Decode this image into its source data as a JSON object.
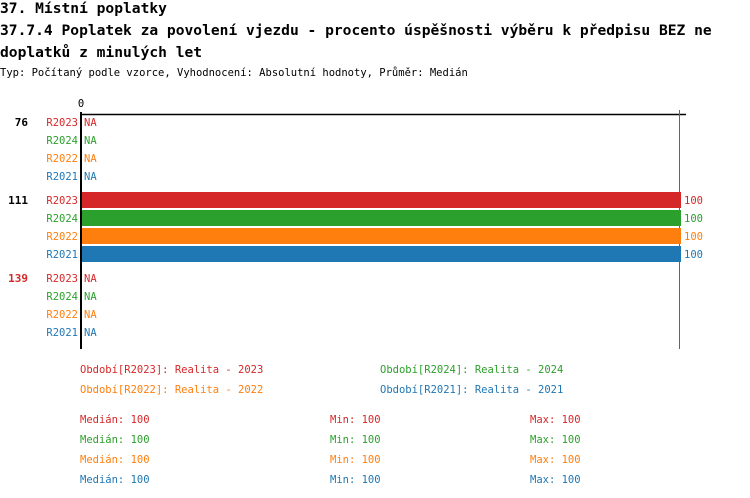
{
  "header": {
    "title": "37. Místní poplatky",
    "subtitle_line1": "37.7.4 Poplatek za povolení vjezdu - procento úspěšnosti výběru k předpisu BEZ ne",
    "subtitle_line2": "doplatků z minulých let",
    "info": "Typ: Počítaný podle vzorce, Vyhodnocení: Absolutní hodnoty, Průměr: Medián"
  },
  "colors": {
    "R2023": "#d62728",
    "R2024": "#2ca02c",
    "R2022": "#ff7f0e",
    "R2021": "#1f77b4"
  },
  "chart_data": {
    "type": "bar",
    "orientation": "horizontal",
    "x_tick_labels": [
      "0"
    ],
    "xlim": [
      0,
      100
    ],
    "categories": [
      "76",
      "111",
      "139"
    ],
    "category_colors": [
      "#000000",
      "#000000",
      "#d62728"
    ],
    "series": [
      {
        "name": "R2023",
        "values": [
          null,
          100,
          null
        ]
      },
      {
        "name": "R2024",
        "values": [
          null,
          100,
          null
        ]
      },
      {
        "name": "R2022",
        "values": [
          null,
          100,
          null
        ]
      },
      {
        "name": "R2021",
        "values": [
          null,
          100,
          null
        ]
      }
    ],
    "missing_label": "NA"
  },
  "legend": [
    {
      "text": "Období[R2023]: Realita - 2023",
      "series": "R2023"
    },
    {
      "text": "Období[R2024]: Realita - 2024",
      "series": "R2024"
    },
    {
      "text": "Období[R2022]: Realita - 2022",
      "series": "R2022"
    },
    {
      "text": "Období[R2021]: Realita - 2021",
      "series": "R2021"
    }
  ],
  "stats": [
    {
      "series": "R2023",
      "median": "Medián: 100",
      "min": "Min: 100",
      "max": "Max: 100"
    },
    {
      "series": "R2024",
      "median": "Medián: 100",
      "min": "Min: 100",
      "max": "Max: 100"
    },
    {
      "series": "R2022",
      "median": "Medián: 100",
      "min": "Min: 100",
      "max": "Max: 100"
    },
    {
      "series": "R2021",
      "median": "Medián: 100",
      "min": "Min: 100",
      "max": "Max: 100"
    }
  ]
}
